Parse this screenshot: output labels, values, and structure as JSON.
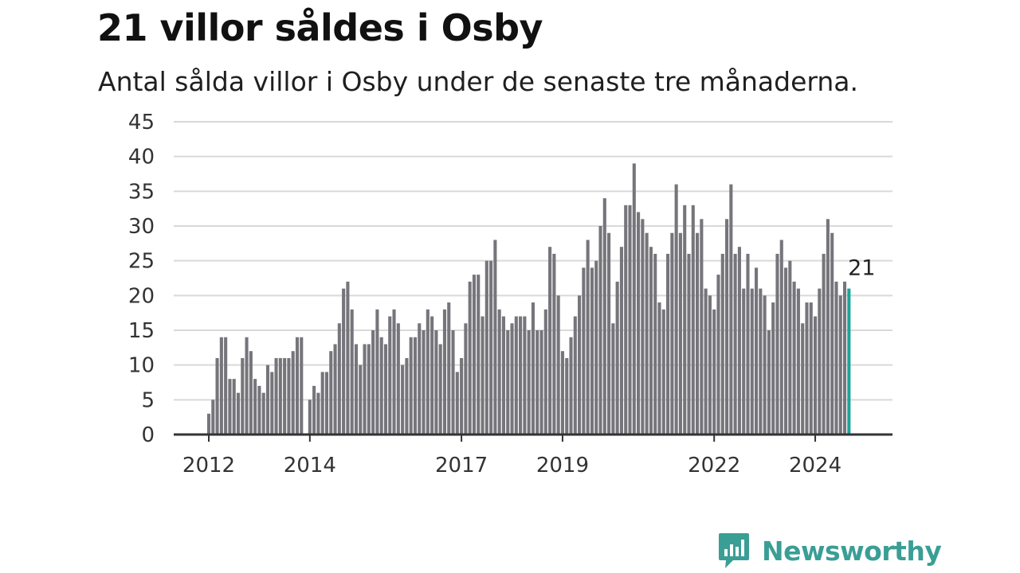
{
  "title": "21 villor såldes i Osby",
  "subtitle": "Antal sålda villor i Osby under de senaste tre månaderna.",
  "brand": {
    "name": "Newsworthy",
    "color": "#3a9e95",
    "icon": "newsworthy-chart-bubble-icon"
  },
  "colors": {
    "bar": "#76757b",
    "highlight": "#1aa59a",
    "grid": "#d9d9d9",
    "axis": "#333333"
  },
  "chart_data": {
    "type": "bar",
    "title": "21 villor såldes i Osby",
    "xlabel": "",
    "ylabel": "",
    "ylim": [
      0,
      45
    ],
    "yticks": [
      0,
      5,
      10,
      15,
      20,
      25,
      30,
      35,
      40,
      45
    ],
    "grid": true,
    "start": "2012-01",
    "xtick_labels": [
      {
        "label": "2012",
        "month": "2012-01"
      },
      {
        "label": "2014",
        "month": "2014-01"
      },
      {
        "label": "2017",
        "month": "2017-01"
      },
      {
        "label": "2019",
        "month": "2019-01"
      },
      {
        "label": "2022",
        "month": "2022-01"
      },
      {
        "label": "2024",
        "month": "2024-01"
      }
    ],
    "values": [
      3,
      5,
      11,
      14,
      14,
      8,
      8,
      6,
      11,
      14,
      12,
      8,
      7,
      6,
      10,
      9,
      11,
      11,
      11,
      11,
      12,
      14,
      14,
      0,
      5,
      7,
      6,
      9,
      9,
      12,
      13,
      16,
      21,
      22,
      18,
      13,
      10,
      13,
      13,
      15,
      18,
      14,
      13,
      17,
      18,
      16,
      10,
      11,
      14,
      14,
      16,
      15,
      18,
      17,
      15,
      13,
      18,
      19,
      15,
      9,
      11,
      16,
      22,
      23,
      23,
      17,
      25,
      25,
      28,
      18,
      17,
      15,
      16,
      17,
      17,
      17,
      15,
      19,
      15,
      15,
      18,
      27,
      26,
      20,
      12,
      11,
      14,
      17,
      20,
      24,
      28,
      24,
      25,
      30,
      34,
      29,
      16,
      22,
      27,
      33,
      33,
      39,
      32,
      31,
      29,
      27,
      26,
      19,
      18,
      26,
      29,
      36,
      29,
      33,
      26,
      33,
      29,
      31,
      21,
      20,
      18,
      23,
      26,
      31,
      36,
      26,
      27,
      21,
      26,
      21,
      24,
      21,
      20,
      15,
      19,
      26,
      28,
      24,
      25,
      22,
      21,
      16,
      19,
      19,
      17,
      21,
      26,
      31,
      29,
      22,
      20,
      22,
      21
    ],
    "highlight_last": true,
    "last_value_label": "21"
  }
}
